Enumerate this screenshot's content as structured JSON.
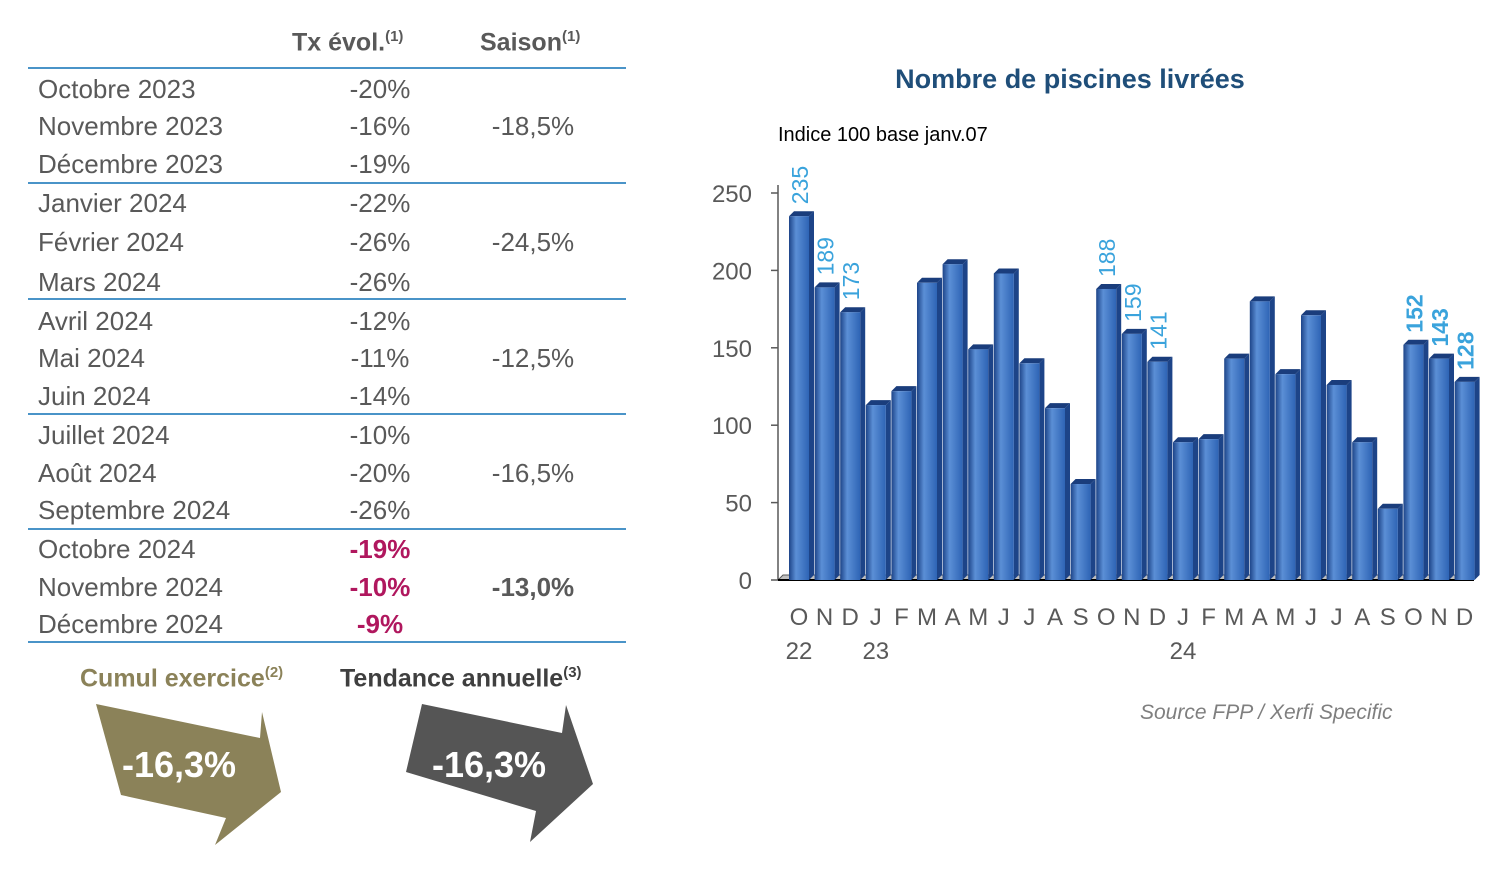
{
  "table": {
    "headers": {
      "evol": "Tx évol.",
      "evol_note": "(1)",
      "season": "Saison",
      "season_note": "(1)"
    },
    "rows": [
      {
        "label": "Octobre 2023",
        "evol": "-20%"
      },
      {
        "label": "Novembre 2023",
        "evol": "-16%"
      },
      {
        "label": "Décembre 2023",
        "evol": "-19%"
      },
      {
        "label": "Janvier 2024",
        "evol": "-22%"
      },
      {
        "label": "Février 2024",
        "evol": "-26%"
      },
      {
        "label": "Mars 2024",
        "evol": "-26%"
      },
      {
        "label": "Avril 2024",
        "evol": "-12%"
      },
      {
        "label": "Mai 2024",
        "evol": "-11%"
      },
      {
        "label": "Juin 2024",
        "evol": "-14%"
      },
      {
        "label": "Juillet 2024",
        "evol": "-10%"
      },
      {
        "label": "Août 2024",
        "evol": "-20%"
      },
      {
        "label": "Septembre 2024",
        "evol": "-26%"
      },
      {
        "label": "Octobre 2024",
        "evol": "-19%"
      },
      {
        "label": "Novembre 2024",
        "evol": "-10%"
      },
      {
        "label": "Décembre 2024",
        "evol": "-9%"
      }
    ],
    "seasons": [
      "-18,5%",
      "-24,5%",
      "-12,5%",
      "-16,5%",
      "-13,0%"
    ]
  },
  "cumul": {
    "title": "Cumul exercice",
    "note": "(2)",
    "value": "-16,3%"
  },
  "tendance": {
    "title": "Tendance annuelle",
    "note": "(3)",
    "value": "-16,3%"
  },
  "colors": {
    "bar": "#2e64b5",
    "bar_light": "#5b8fd6",
    "bar_dark": "#1d4488",
    "label": "#3aa3dc",
    "highlight": "#b0175e",
    "cumul": "#8b8259",
    "tendance": "#555555",
    "line": "#4a94c8"
  },
  "chart_data": {
    "type": "bar",
    "title": "Nombre de piscines livrées",
    "subtitle": "Indice 100 base janv.07",
    "source": "Source FPP / Xerfi Specific",
    "ylim": [
      0,
      250
    ],
    "yticks": [
      0,
      50,
      100,
      150,
      200,
      250
    ],
    "categories": [
      "O",
      "N",
      "D",
      "J",
      "F",
      "M",
      "A",
      "M",
      "J",
      "J",
      "A",
      "S",
      "O",
      "N",
      "D",
      "J",
      "F",
      "M",
      "A",
      "M",
      "J",
      "J",
      "A",
      "S",
      "O",
      "N",
      "D"
    ],
    "year_labels": [
      {
        "index": 0,
        "label": "22"
      },
      {
        "index": 3,
        "label": "23"
      },
      {
        "index": 15,
        "label": "24"
      }
    ],
    "values": [
      235,
      189,
      173,
      113,
      122,
      192,
      204,
      149,
      198,
      140,
      111,
      62,
      188,
      159,
      141,
      89,
      91,
      143,
      180,
      133,
      171,
      126,
      89,
      46,
      152,
      143,
      128
    ],
    "data_labels": [
      {
        "index": 0,
        "text": "235",
        "bold": false
      },
      {
        "index": 1,
        "text": "189",
        "bold": false
      },
      {
        "index": 2,
        "text": "173",
        "bold": false
      },
      {
        "index": 12,
        "text": "188",
        "bold": false
      },
      {
        "index": 13,
        "text": "159",
        "bold": false
      },
      {
        "index": 14,
        "text": "141",
        "bold": false
      },
      {
        "index": 24,
        "text": "152",
        "bold": true
      },
      {
        "index": 25,
        "text": "143",
        "bold": true
      },
      {
        "index": 26,
        "text": "128",
        "bold": true
      }
    ]
  }
}
